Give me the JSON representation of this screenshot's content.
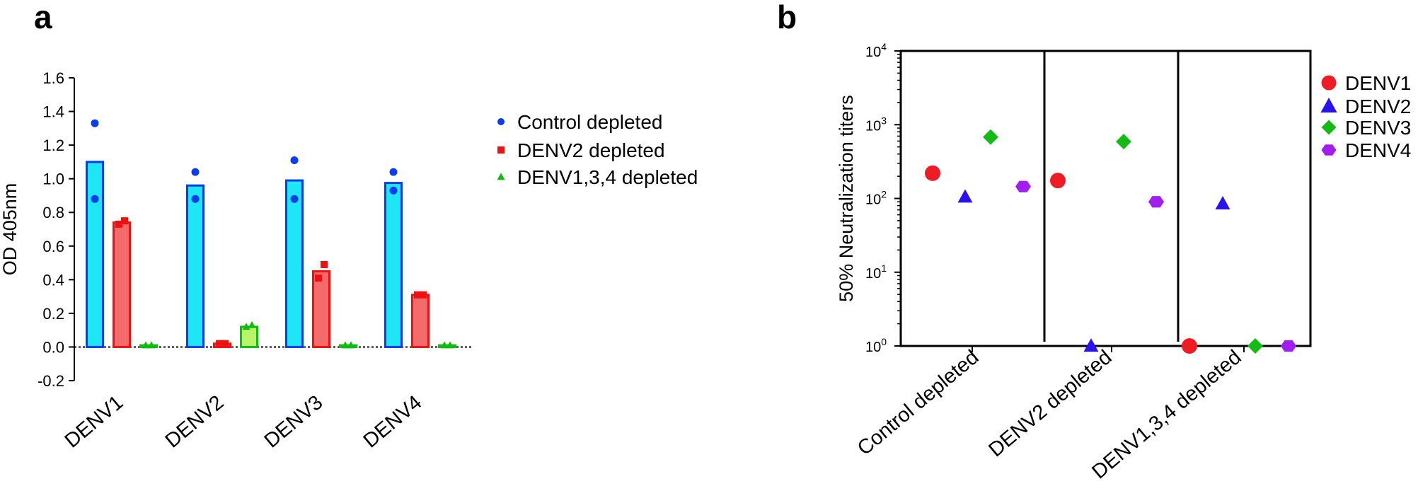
{
  "panels": {
    "a": {
      "letter": "a"
    },
    "b": {
      "letter": "b"
    }
  },
  "chart_data": [
    {
      "type": "bar",
      "panel": "a",
      "ylabel": "OD 405nm",
      "ylim": [
        -0.2,
        1.6
      ],
      "yticks": [
        "-0.2",
        "0.0",
        "0.2",
        "0.4",
        "0.6",
        "0.8",
        "1.0",
        "1.2",
        "1.4",
        "1.6"
      ],
      "categories": [
        "DENV1",
        "DENV2",
        "DENV3",
        "DENV4"
      ],
      "zero_line": "dotted",
      "legend_position": "right",
      "series": [
        {
          "name": "Control depleted",
          "marker": "circle",
          "color": "#0a3cf0",
          "fill": "#1ee6f5",
          "values": [
            1.1,
            0.96,
            0.99,
            0.975
          ],
          "points": [
            [
              1.33,
              0.88
            ],
            [
              1.04,
              0.88
            ],
            [
              1.11,
              0.88
            ],
            [
              1.04,
              0.93
            ]
          ]
        },
        {
          "name": "DENV2 depleted",
          "marker": "square",
          "color": "#ee1111",
          "fill": "#f56b6b",
          "values": [
            0.74,
            0.02,
            0.45,
            0.31
          ],
          "points": [
            [
              0.73,
              0.75
            ],
            [
              0.02,
              0.02
            ],
            [
              0.41,
              0.49
            ],
            [
              0.31,
              0.31
            ]
          ]
        },
        {
          "name": "DENV1,3,4 depleted",
          "marker": "triangle",
          "color": "#11bb11",
          "fill": "#b9f56b",
          "values": [
            0.01,
            0.12,
            0.01,
            0.01
          ],
          "points": [
            [
              0.01,
              0.01
            ],
            [
              0.12,
              0.13
            ],
            [
              0.01,
              0.01
            ],
            [
              0.01,
              0.01
            ]
          ]
        }
      ]
    },
    {
      "type": "scatter",
      "panel": "b",
      "ylabel": "50% Neutralization titers",
      "yscale": "log",
      "ylim": [
        1,
        10000
      ],
      "yticks": [
        {
          "base": "10",
          "exp": "0"
        },
        {
          "base": "10",
          "exp": "1"
        },
        {
          "base": "10",
          "exp": "2"
        },
        {
          "base": "10",
          "exp": "3"
        },
        {
          "base": "10",
          "exp": "4"
        }
      ],
      "categories": [
        "Control depleted",
        "DENV2 depleted",
        "DENV1,3,4 depleted"
      ],
      "legend_position": "right",
      "series": [
        {
          "name": "DENV1",
          "marker": "circle",
          "color": "#ee1c24",
          "values": [
            220,
            175,
            1
          ]
        },
        {
          "name": "DENV2",
          "marker": "triangle",
          "color": "#2a12f0",
          "values": [
            105,
            1,
            85
          ]
        },
        {
          "name": "DENV3",
          "marker": "diamond",
          "color": "#15bb15",
          "values": [
            680,
            590,
            1
          ]
        },
        {
          "name": "DENV4",
          "marker": "hexagon",
          "color": "#a21df0",
          "values": [
            145,
            90,
            1
          ]
        }
      ]
    }
  ]
}
